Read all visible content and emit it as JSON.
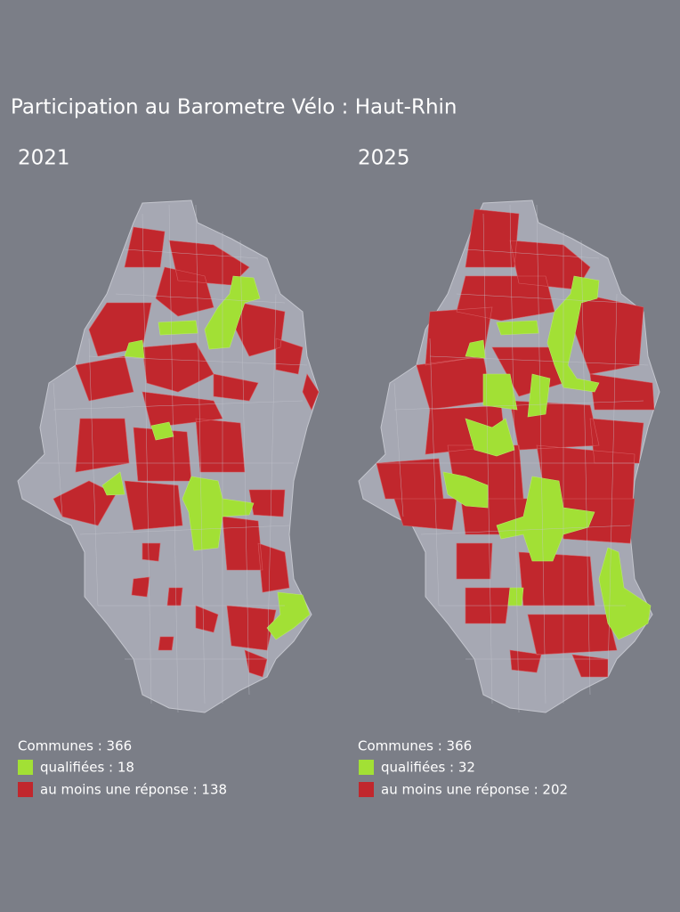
{
  "title": "Participation au Barometre Vélo : Haut-Rhin",
  "panels": [
    {
      "year": "2021",
      "legend": {
        "communes": "Communes : 366",
        "qualified": "qualifiées : 18",
        "responded": "au moins une réponse : 138"
      }
    },
    {
      "year": "2025",
      "legend": {
        "communes": "Communes : 366",
        "qualified": "qualifiées : 32",
        "responded": "au moins une réponse : 202"
      }
    }
  ]
}
